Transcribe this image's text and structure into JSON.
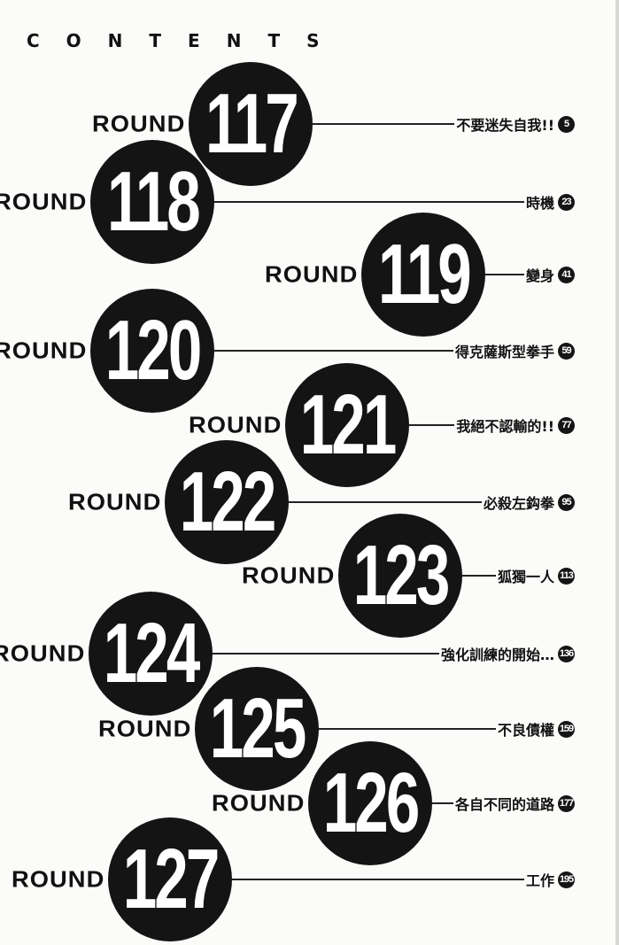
{
  "header": {
    "title": "CONTENTS"
  },
  "chapters": [
    {
      "prefix": "ROUND",
      "number": "117",
      "title": "不要迷失自我!!",
      "page": "5"
    },
    {
      "prefix": "ROUND",
      "number": "118",
      "title": "時機",
      "page": "23"
    },
    {
      "prefix": "ROUND",
      "number": "119",
      "title": "變身",
      "page": "41"
    },
    {
      "prefix": "ROUND",
      "number": "120",
      "title": "得克薩斯型拳手",
      "page": "59"
    },
    {
      "prefix": "ROUND",
      "number": "121",
      "title": "我絕不認輸的!!",
      "page": "77"
    },
    {
      "prefix": "ROUND",
      "number": "122",
      "title": "必殺左鈎拳",
      "page": "95"
    },
    {
      "prefix": "ROUND",
      "number": "123",
      "title": "狐獨一人",
      "page": "113"
    },
    {
      "prefix": "ROUND",
      "number": "124",
      "title": "強化訓練的開始…",
      "page": "136"
    },
    {
      "prefix": "ROUND",
      "number": "125",
      "title": "不良債權",
      "page": "159"
    },
    {
      "prefix": "ROUND",
      "number": "126",
      "title": "各自不同的道路",
      "page": "177"
    },
    {
      "prefix": "ROUND",
      "number": "127",
      "title": "工作",
      "page": "195"
    }
  ]
}
